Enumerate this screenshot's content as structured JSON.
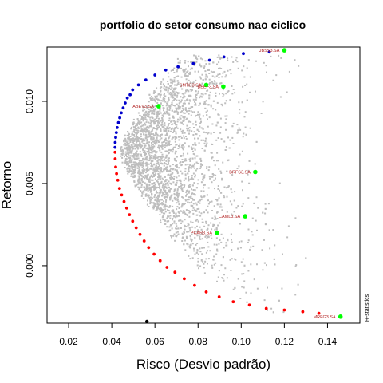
{
  "chart_data": {
    "type": "scatter",
    "title": "portfolio do setor consumo nao ciclico",
    "xlabel": "Risco (Desvio padrão)",
    "ylabel": "Retorno",
    "xlim": [
      0.01,
      0.155
    ],
    "ylim": [
      -0.0035,
      0.0133
    ],
    "x_ticks": [
      0.02,
      0.04,
      0.06,
      0.08,
      0.1,
      0.12,
      0.14
    ],
    "x_tick_labels": [
      "0.02",
      "0.04",
      "0.06",
      "0.08",
      "0.10",
      "0.12",
      "0.14"
    ],
    "y_ticks": [
      0.0,
      0.005,
      0.01
    ],
    "y_tick_labels": [
      "0.000",
      "0.005",
      "0.010"
    ],
    "credit_text": "R-statistics",
    "colors": {
      "random_portfolios": "#bebebe",
      "efficient_frontier": "#0000cd",
      "inefficient_frontier": "#ff0000",
      "assets": "#00ff00",
      "asset_labels": "#b22222",
      "min_point": "#000000",
      "credit": "#a0a0a0"
    },
    "efficient_frontier": [
      [
        0.0415,
        0.0072
      ],
      [
        0.0416,
        0.0075
      ],
      [
        0.0418,
        0.0078
      ],
      [
        0.0421,
        0.0081
      ],
      [
        0.0425,
        0.0084
      ],
      [
        0.0431,
        0.0087
      ],
      [
        0.0437,
        0.009
      ],
      [
        0.0444,
        0.0093
      ],
      [
        0.0453,
        0.0096
      ],
      [
        0.0462,
        0.0099
      ],
      [
        0.0472,
        0.0102
      ],
      [
        0.0485,
        0.0104
      ],
      [
        0.0497,
        0.0107
      ],
      [
        0.0524,
        0.011
      ],
      [
        0.0558,
        0.0113
      ],
      [
        0.06,
        0.0116
      ],
      [
        0.065,
        0.0119
      ],
      [
        0.0707,
        0.0121
      ],
      [
        0.0778,
        0.0123
      ],
      [
        0.0853,
        0.0125
      ],
      [
        0.092,
        0.0127
      ],
      [
        0.101,
        0.0129
      ],
      [
        0.113,
        0.013
      ]
    ],
    "inefficient_frontier": [
      [
        0.0415,
        0.0069
      ],
      [
        0.0416,
        0.0065
      ],
      [
        0.0418,
        0.006
      ],
      [
        0.0422,
        0.0056
      ],
      [
        0.0428,
        0.0052
      ],
      [
        0.0436,
        0.0047
      ],
      [
        0.0446,
        0.0043
      ],
      [
        0.0457,
        0.0039
      ],
      [
        0.0469,
        0.0035
      ],
      [
        0.0482,
        0.0031
      ],
      [
        0.0497,
        0.0027
      ],
      [
        0.0513,
        0.0023
      ],
      [
        0.0531,
        0.0019
      ],
      [
        0.055,
        0.0015
      ],
      [
        0.0571,
        0.0011
      ],
      [
        0.0596,
        0.0007
      ],
      [
        0.0624,
        0.0003
      ],
      [
        0.0656,
        -0.0001
      ],
      [
        0.0693,
        -0.0004
      ],
      [
        0.0736,
        -0.0008
      ],
      [
        0.0784,
        -0.0012
      ],
      [
        0.0838,
        -0.0016
      ],
      [
        0.0898,
        -0.0019
      ],
      [
        0.0963,
        -0.0022
      ],
      [
        0.1038,
        -0.0024
      ],
      [
        0.1116,
        -0.0026
      ],
      [
        0.12,
        -0.0027
      ],
      [
        0.1285,
        -0.0028
      ],
      [
        0.136,
        -0.0029
      ]
    ],
    "assets": [
      {
        "label": "JBSS3.SA",
        "x": 0.12,
        "y": 0.0131
      },
      {
        "label": "SMTO3.SA",
        "x": 0.0838,
        "y": 0.011
      },
      {
        "label": "BEEF3.SA",
        "x": 0.0917,
        "y": 0.0109
      },
      {
        "label": "ABEV3.SA",
        "x": 0.0617,
        "y": 0.0097
      },
      {
        "label": "BRFS3.SA",
        "x": 0.1065,
        "y": 0.0057
      },
      {
        "label": "CAML3.SA",
        "x": 0.1018,
        "y": 0.003
      },
      {
        "label": "PCAR3.SA",
        "x": 0.0888,
        "y": 0.002
      },
      {
        "label": "MRFG3.SA",
        "x": 0.146,
        "y": -0.0031
      }
    ],
    "min_point": [
      0.0563,
      -0.0034
    ]
  }
}
